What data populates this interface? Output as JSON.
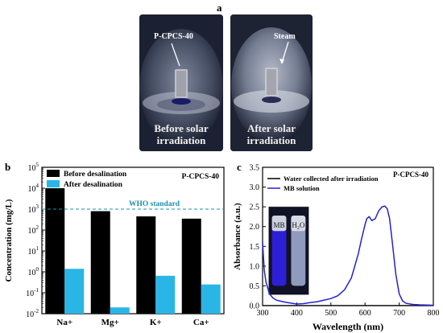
{
  "panel_a": {
    "letter": "a",
    "photo_left": {
      "label": "P-CPCS-40",
      "caption_line1": "Before solar",
      "caption_line2": "irradiation"
    },
    "photo_right": {
      "label": "Steam",
      "caption_line1": "After solar",
      "caption_line2": "irradiation"
    }
  },
  "chart_data": [
    {
      "panel": "b",
      "type": "bar",
      "annotation": "P-CPCS-40",
      "categories": [
        "Na+",
        "Mg+",
        "K+",
        "Ca+"
      ],
      "series": [
        {
          "name": "Before desalination",
          "values": [
            10000,
            800,
            450,
            350
          ],
          "color": "#000000"
        },
        {
          "name": "After desalination",
          "values": [
            1.4,
            0.02,
            0.65,
            0.25
          ],
          "color": "#29b6e6"
        }
      ],
      "ylabel": "Concentration (mg/L)",
      "yscale": "log",
      "ylim": [
        0.01,
        100000
      ],
      "yticks": [
        {
          "value": 0.01,
          "label": "10",
          "exp": "-2"
        },
        {
          "value": 0.1,
          "label": "10",
          "exp": "-1"
        },
        {
          "value": 1,
          "label": "10",
          "exp": "0"
        },
        {
          "value": 10,
          "label": "10",
          "exp": "1"
        },
        {
          "value": 100,
          "label": "10",
          "exp": "2"
        },
        {
          "value": 1000,
          "label": "10",
          "exp": "3"
        },
        {
          "value": 10000,
          "label": "10",
          "exp": "4"
        },
        {
          "value": 100000,
          "label": "10",
          "exp": "5"
        }
      ],
      "reference_line": {
        "value": 1000,
        "label": "WHO standard",
        "color": "#1a8fb0"
      },
      "legend": "top-left"
    },
    {
      "panel": "c",
      "type": "line",
      "annotation": "P-CPCS-40",
      "xlabel": "Wavelength (nm)",
      "ylabel": "Absorbance (a.u.)",
      "xlim": [
        300,
        800
      ],
      "ylim": [
        0,
        3.5
      ],
      "xticks": [
        300,
        400,
        500,
        600,
        700,
        800
      ],
      "yticks": [
        0.0,
        0.5,
        1.0,
        1.5,
        2.0,
        2.5,
        3.0,
        3.5
      ],
      "series": [
        {
          "name": "Water collected after irradiation",
          "color": "#000000",
          "x": [
            300,
            400,
            500,
            600,
            700,
            800
          ],
          "y": [
            0.005,
            0.003,
            0.002,
            0.002,
            0.002,
            0.002
          ]
        },
        {
          "name": "MB solution",
          "color": "#2222cc",
          "x": [
            300,
            305,
            310,
            320,
            330,
            340,
            350,
            360,
            380,
            400,
            420,
            440,
            460,
            480,
            500,
            520,
            540,
            560,
            580,
            590,
            600,
            605,
            612,
            620,
            630,
            640,
            650,
            658,
            665,
            672,
            680,
            690,
            700,
            710,
            720,
            740,
            760,
            780,
            800
          ],
          "y": [
            1.6,
            0.9,
            0.6,
            0.3,
            0.2,
            0.14,
            0.12,
            0.1,
            0.07,
            0.04,
            0.05,
            0.08,
            0.1,
            0.14,
            0.18,
            0.25,
            0.4,
            0.7,
            1.3,
            1.7,
            2.05,
            2.2,
            2.25,
            2.15,
            2.2,
            2.4,
            2.5,
            2.52,
            2.45,
            2.2,
            1.6,
            0.8,
            0.3,
            0.12,
            0.06,
            0.03,
            0.02,
            0.015,
            0.01
          ]
        }
      ],
      "legend": "top-left",
      "inset": {
        "label_left": "MB",
        "label_right": "H2O"
      }
    }
  ]
}
